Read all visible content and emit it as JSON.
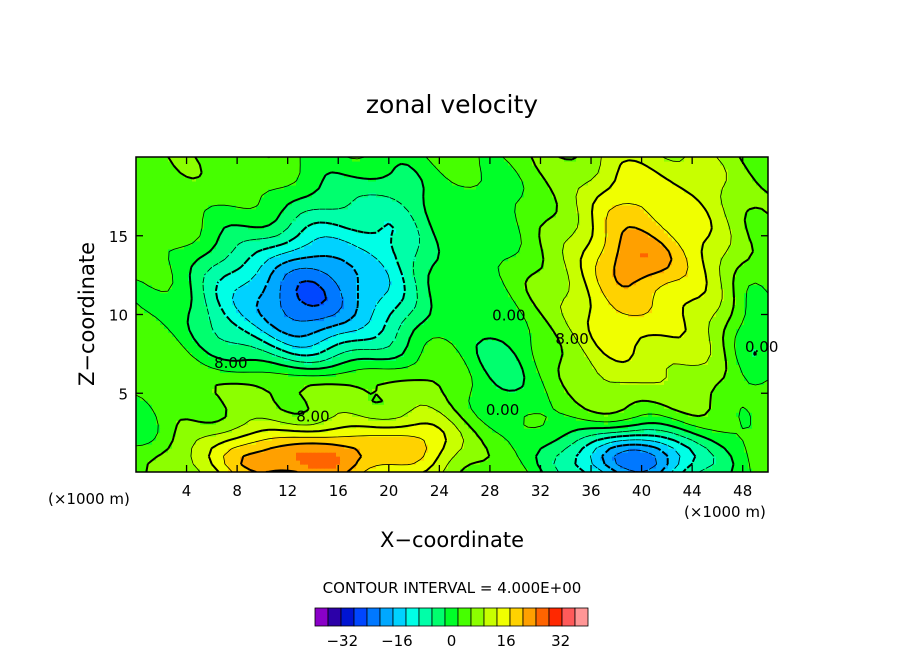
{
  "chart_data": {
    "type": "contour",
    "title": "zonal velocity",
    "xlabel": "X−coordinate",
    "ylabel": "Z−coordinate",
    "x_unit_label_left": "(×1000 m)",
    "x_unit_label_right": "(×1000 m)",
    "xlim": [
      0,
      50
    ],
    "ylim": [
      0,
      20
    ],
    "x_ticks": [
      4,
      8,
      12,
      16,
      20,
      24,
      28,
      32,
      36,
      40,
      44,
      48
    ],
    "y_ticks": [
      5,
      10,
      15
    ],
    "contour_interval_text": "CONTOUR INTERVAL = 4.000E+00",
    "contour_labels": [
      {
        "text": "8.00",
        "x": 7.5,
        "y": 7.0
      },
      {
        "text": "8.00",
        "x": 14.0,
        "y": 3.6
      },
      {
        "text": "0.00",
        "x": 29.5,
        "y": 10.0
      },
      {
        "text": "0.00",
        "x": 29.0,
        "y": 4.0
      },
      {
        "text": "8.00",
        "x": 34.5,
        "y": 8.5
      },
      {
        "text": "0.00",
        "x": 49.5,
        "y": 8.0
      }
    ],
    "colorbar": {
      "levels": [
        -40,
        -36,
        -32,
        -28,
        -24,
        -20,
        -16,
        -12,
        -8,
        -4,
        0,
        4,
        8,
        12,
        16,
        20,
        24,
        28,
        32,
        36,
        40
      ],
      "colors": [
        "#8a00c8",
        "#2c00a8",
        "#0014d2",
        "#0046ff",
        "#0078ff",
        "#00a8ff",
        "#00d2ff",
        "#00ffe6",
        "#00ffa8",
        "#00ff6e",
        "#00ff28",
        "#46ff00",
        "#8cff00",
        "#c8ff00",
        "#f0ff00",
        "#ffd200",
        "#ffa000",
        "#ff6400",
        "#ff2800",
        "#ff5a5a",
        "#ff9696"
      ],
      "tick_labels": [
        "−32",
        "−16",
        "0",
        "16",
        "32"
      ],
      "tick_values": [
        -32,
        -16,
        0,
        16,
        32
      ]
    },
    "field_extrema": [
      {
        "kind": "min",
        "x": 13.5,
        "y": 11.0,
        "value": -24
      },
      {
        "kind": "min",
        "x": 39.0,
        "y": 0.6,
        "value": -24
      },
      {
        "kind": "max",
        "x": 12.0,
        "y": 0.6,
        "value": 26
      },
      {
        "kind": "max",
        "x": 40.5,
        "y": 13.5,
        "value": 22
      }
    ]
  }
}
